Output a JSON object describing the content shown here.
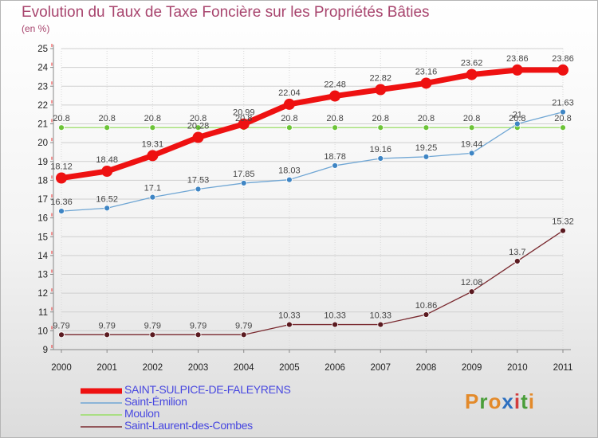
{
  "title": "Evolution du Taux de Taxe Foncière sur les Propriétés Bâties",
  "subtitle": "(en %)",
  "logo": {
    "letters": [
      "P",
      "r",
      "o",
      "x",
      "i",
      "t",
      "i"
    ],
    "colors": [
      "#e38a2a",
      "#4a9e3a",
      "#e38a2a",
      "#2c6fc0",
      "#d23c3c",
      "#4a9e3a",
      "#e38a2a"
    ]
  },
  "chart_data": {
    "type": "line",
    "title": "Evolution du Taux de Taxe Foncière sur les Propriétés Bâties",
    "ylabel": "(en %)",
    "x": [
      "2000",
      "2001",
      "2002",
      "2003",
      "2004",
      "2005",
      "2006",
      "2007",
      "2008",
      "2009",
      "2010",
      "2011"
    ],
    "ylim": [
      9,
      25
    ],
    "yticks": [
      9,
      10,
      11,
      12,
      13,
      14,
      15,
      16,
      17,
      18,
      19,
      20,
      21,
      22,
      23,
      24,
      25
    ],
    "series": [
      {
        "name": "SAINT-SULPICE-DE-FALEYRENS",
        "color": "#ee1111",
        "width": 7,
        "marker": 7,
        "values": [
          18.12,
          18.48,
          19.31,
          20.28,
          20.99,
          22.04,
          22.48,
          22.82,
          23.16,
          23.62,
          23.86,
          23.86
        ],
        "labels": [
          "18.12",
          "18.48",
          "19.31",
          "20.28",
          "20.99",
          "22.04",
          "22.48",
          "22.82",
          "23.16",
          "23.62",
          "23.86",
          "23.86"
        ]
      },
      {
        "name": "Saint-Émilion",
        "color": "#6fa6d4",
        "dot": "#3e85c4",
        "width": 1.3,
        "marker": 3.5,
        "values": [
          16.36,
          16.52,
          17.1,
          17.53,
          17.85,
          18.03,
          18.78,
          19.16,
          19.25,
          19.44,
          21,
          21.63
        ],
        "labels": [
          "16.36",
          "16.52",
          "17.1",
          "17.53",
          "17.85",
          "18.03",
          "18.78",
          "19.16",
          "19.25",
          "19.44",
          "21",
          "21.63"
        ]
      },
      {
        "name": "Moulon",
        "color": "#99dd66",
        "dot": "#6cc437",
        "width": 1.3,
        "marker": 3.5,
        "values": [
          20.8,
          20.8,
          20.8,
          20.8,
          20.8,
          20.8,
          20.8,
          20.8,
          20.8,
          20.8,
          20.8,
          20.8
        ],
        "labels": [
          "20.8",
          "20.8",
          "20.8",
          "20.8",
          "20.8",
          "20.8",
          "20.8",
          "20.8",
          "20.8",
          "20.8",
          "20.8",
          "20.8"
        ]
      },
      {
        "name": "Saint-Laurent-des-Combes",
        "color": "#7a2a30",
        "dot": "#5a1a20",
        "width": 1.3,
        "marker": 3.5,
        "values": [
          9.79,
          9.79,
          9.79,
          9.79,
          9.79,
          10.33,
          10.33,
          10.33,
          10.86,
          12.08,
          13.7,
          15.32
        ],
        "labels": [
          "9.79",
          "9.79",
          "9.79",
          "9.79",
          "9.79",
          "10.33",
          "10.33",
          "10.33",
          "10.86",
          "12.08",
          "13.7",
          "15.32"
        ]
      }
    ],
    "legend": [
      "SAINT-SULPICE-DE-FALEYRENS",
      "Saint-Émilion",
      "Moulon",
      "Saint-Laurent-des-Combes"
    ]
  }
}
